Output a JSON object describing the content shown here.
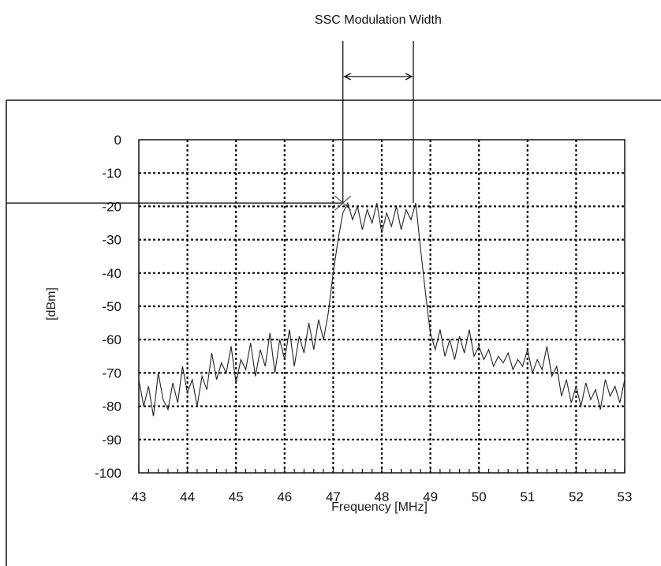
{
  "chart_data": {
    "type": "line",
    "title": "",
    "xlabel": "Frequency [MHz]",
    "ylabel": "[dBm]",
    "xlim": [
      43,
      53
    ],
    "ylim": [
      -100,
      0
    ],
    "grid": true,
    "x_ticks": [
      "43",
      "44",
      "45",
      "46",
      "47",
      "48",
      "49",
      "50",
      "51",
      "52",
      "53"
    ],
    "y_ticks": [
      "0",
      "-10",
      "-20",
      "-30",
      "-40",
      "-50",
      "-60",
      "-70",
      "-80",
      "-90",
      "-100"
    ],
    "series": [
      {
        "color": "#222222",
        "x": [
          43.0,
          43.1,
          43.2,
          43.3,
          43.4,
          43.5,
          43.6,
          43.7,
          43.8,
          43.9,
          44.0,
          44.1,
          44.2,
          44.3,
          44.4,
          44.5,
          44.6,
          44.7,
          44.8,
          44.9,
          45.0,
          45.1,
          45.2,
          45.3,
          45.4,
          45.5,
          45.6,
          45.7,
          45.8,
          45.9,
          46.0,
          46.1,
          46.2,
          46.3,
          46.4,
          46.5,
          46.6,
          46.7,
          46.8,
          46.9,
          47.0,
          47.1,
          47.2,
          47.3,
          47.4,
          47.5,
          47.6,
          47.7,
          47.8,
          47.9,
          48.0,
          48.1,
          48.2,
          48.3,
          48.4,
          48.5,
          48.6,
          48.7,
          48.8,
          48.9,
          49.0,
          49.1,
          49.2,
          49.3,
          49.4,
          49.5,
          49.6,
          49.7,
          49.8,
          49.9,
          50.0,
          50.1,
          50.2,
          50.3,
          50.4,
          50.5,
          50.6,
          50.7,
          50.8,
          50.9,
          51.0,
          51.1,
          51.2,
          51.3,
          51.4,
          51.5,
          51.6,
          51.7,
          51.8,
          51.9,
          52.0,
          52.1,
          52.2,
          52.3,
          52.4,
          52.5,
          52.6,
          52.7,
          52.8,
          52.9,
          53.0
        ],
        "y": [
          -72,
          -80,
          -74,
          -83,
          -70,
          -78,
          -81,
          -73,
          -79,
          -68,
          -76,
          -72,
          -80,
          -71,
          -75,
          -64,
          -72,
          -67,
          -70,
          -62,
          -73,
          -66,
          -69,
          -61,
          -71,
          -63,
          -68,
          -58,
          -70,
          -60,
          -66,
          -57,
          -68,
          -59,
          -64,
          -55,
          -63,
          -54,
          -60,
          -52,
          -40,
          -30,
          -22,
          -19,
          -24,
          -20,
          -27,
          -21,
          -25,
          -19,
          -28,
          -22,
          -26,
          -20,
          -27,
          -21,
          -24,
          -19,
          -33,
          -46,
          -58,
          -63,
          -57,
          -65,
          -60,
          -66,
          -59,
          -64,
          -57,
          -65,
          -62,
          -66,
          -63,
          -68,
          -65,
          -67,
          -64,
          -69,
          -66,
          -68,
          -63,
          -70,
          -66,
          -69,
          -62,
          -71,
          -68,
          -77,
          -72,
          -79,
          -74,
          -80,
          -73,
          -78,
          -75,
          -81,
          -72,
          -77,
          -74,
          -79,
          -72
        ]
      }
    ],
    "annotations": [
      {
        "label": "SSC Modulation Width",
        "x_start": 47.2,
        "x_end": 48.65,
        "y_level": -19
      }
    ]
  }
}
